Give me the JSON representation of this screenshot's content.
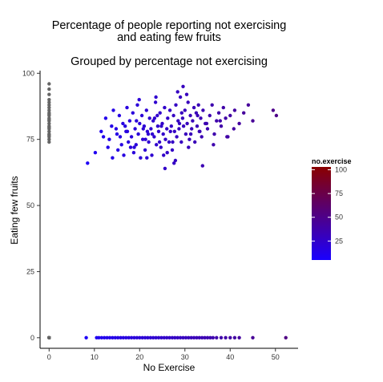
{
  "chart_data": {
    "type": "scatter",
    "title_lines": [
      "Percentage of people reporting not exercising",
      "and eating few fruits"
    ],
    "subtitle": "Grouped by percentage not exercising",
    "xlabel": "No Exercise",
    "ylabel": "Eating few fruits",
    "xlim": [
      -2,
      55
    ],
    "ylim": [
      -4,
      101
    ],
    "x_ticks": [
      0,
      10,
      20,
      30,
      40,
      50
    ],
    "y_ticks": [
      0,
      25,
      50,
      75,
      100
    ],
    "grid": false,
    "legend": {
      "title": "no.exercise",
      "position": "right",
      "range": [
        5,
        103
      ],
      "ticks": [
        25,
        50,
        75,
        100
      ],
      "color_low": "#1a00ff",
      "color_high": "#8a0000"
    },
    "na_color": "#666666",
    "series": [
      {
        "group": "na-x",
        "x": [
          0,
          0,
          0,
          0,
          0,
          0,
          0,
          0,
          0,
          0,
          0,
          0,
          0,
          0,
          0,
          0,
          0,
          0,
          0,
          0,
          0,
          0,
          0,
          0
        ],
        "y": [
          96,
          94,
          92,
          90,
          89,
          88,
          87,
          86,
          85,
          84.5,
          84,
          83,
          82.5,
          82,
          81,
          80,
          79.5,
          79,
          78,
          77,
          76.5,
          76,
          75,
          74
        ]
      },
      {
        "group": "na-y",
        "x": [
          0,
          0,
          0,
          0,
          0,
          0,
          0,
          0,
          0,
          0,
          0,
          0,
          0,
          0,
          0,
          0,
          0,
          0,
          0,
          0,
          0,
          0,
          0,
          0,
          0,
          0,
          0,
          0,
          0,
          0,
          0,
          0,
          0,
          0,
          0,
          0,
          0,
          0,
          0,
          0,
          0,
          0,
          0,
          0,
          0,
          0,
          0,
          0
        ],
        "y": [
          0,
          0,
          0,
          0,
          0,
          0,
          0,
          0,
          0,
          0,
          0,
          0,
          0,
          0,
          0,
          0,
          0,
          0,
          0,
          0,
          0,
          0,
          0,
          0,
          0,
          0,
          0,
          0,
          0,
          0,
          0,
          0,
          0,
          0,
          0,
          0,
          0,
          0,
          0,
          0,
          0,
          0,
          0,
          0,
          0,
          0,
          0,
          0
        ]
      },
      {
        "group": "cluster",
        "x": [
          8.5,
          10.2,
          11.5,
          12,
          12.5,
          13,
          13.3,
          14,
          14.2,
          14.8,
          15,
          15.2,
          15.5,
          16,
          16.3,
          16.5,
          17,
          17.2,
          17.5,
          17.8,
          18,
          18.2,
          18.5,
          18.7,
          19,
          19.2,
          19.5,
          19.7,
          20,
          20.2,
          20.5,
          20.7,
          21,
          21.2,
          21.5,
          21.7,
          22,
          22.2,
          22.5,
          22.7,
          23,
          23.2,
          23.5,
          23.7,
          24,
          24.2,
          24.5,
          24.7,
          25,
          25.2,
          25.5,
          25.7,
          26,
          26.2,
          26.5,
          26.7,
          27,
          27.2,
          27.5,
          27.7,
          28,
          28.2,
          28.5,
          28.7,
          29,
          29.2,
          29.5,
          29.7,
          30,
          30.2,
          30.5,
          30.7,
          31,
          31.2,
          31.5,
          31.7,
          32,
          32.2,
          32.5,
          32.7,
          33,
          33.2,
          33.5,
          33.7,
          34,
          34.5,
          35,
          35.5,
          36,
          36.5,
          37,
          37.5,
          38,
          38.5,
          39,
          39.5,
          40,
          41,
          42,
          43,
          44,
          45,
          49.5,
          50.2,
          13.8,
          15.7,
          16.8,
          17.3,
          18.8,
          19.3,
          20.8,
          21.3,
          22.8,
          23.3,
          24.8,
          25.3,
          26.8,
          27.3,
          28.8,
          29.3,
          30.8,
          31.3,
          32.8,
          33.3,
          34.8,
          36.3,
          37.8,
          39.3,
          40.8,
          23.9,
          26.1,
          28.4,
          19.9,
          21.9,
          24.4,
          27.9,
          30.4,
          33.9,
          29.6,
          27.6,
          25.6,
          23.6,
          21.6
        ],
        "y": [
          66,
          70,
          78,
          76,
          83,
          72,
          75,
          68,
          86,
          79,
          77,
          71,
          84,
          73,
          81,
          69,
          78,
          87,
          74,
          82,
          72,
          76,
          85,
          70,
          79,
          73,
          88,
          77,
          81,
          68,
          84,
          75,
          80,
          71,
          86,
          78,
          74,
          83,
          79,
          69,
          82,
          76,
          89,
          73,
          80,
          78,
          85,
          72,
          81,
          77,
          87,
          75,
          79,
          83,
          74,
          86,
          80,
          71,
          84,
          78,
          88,
          76,
          82,
          79,
          91,
          74,
          83,
          80,
          86,
          77,
          81,
          89,
          75,
          84,
          79,
          82,
          87,
          74,
          85,
          80,
          88,
          78,
          83,
          76,
          86,
          81,
          79,
          84,
          88,
          77,
          82,
          85,
          80,
          87,
          83,
          76,
          84,
          86,
          81,
          85,
          88,
          82,
          86,
          84,
          80,
          76,
          80,
          78,
          72,
          82,
          79,
          75,
          77,
          83,
          80,
          69,
          78,
          74,
          81,
          85,
          72,
          77,
          84,
          78,
          81,
          73,
          82,
          76,
          79,
          84,
          70,
          93,
          90,
          77,
          74,
          67,
          92,
          65,
          95,
          66,
          64,
          91,
          68
        ]
      },
      {
        "group": "zero-row",
        "x": [
          8.2,
          10.5,
          11,
          11.6,
          12.2,
          12.8,
          13.4,
          14,
          14.6,
          15.2,
          15.8,
          16.4,
          17,
          17.6,
          18.2,
          18.8,
          19.4,
          20,
          20.6,
          21.2,
          21.8,
          22.4,
          23,
          23.6,
          24.2,
          24.8,
          25.4,
          26,
          26.6,
          27.2,
          27.8,
          28.4,
          29,
          29.6,
          30.2,
          30.8,
          31.4,
          32,
          32.6,
          33.2,
          33.8,
          34.4,
          35,
          35.6,
          36.2,
          37,
          38,
          39,
          40,
          41,
          42,
          45,
          52.3
        ],
        "y": [
          0,
          0,
          0,
          0,
          0,
          0,
          0,
          0,
          0,
          0,
          0,
          0,
          0,
          0,
          0,
          0,
          0,
          0,
          0,
          0,
          0,
          0,
          0,
          0,
          0,
          0,
          0,
          0,
          0,
          0,
          0,
          0,
          0,
          0,
          0,
          0,
          0,
          0,
          0,
          0,
          0,
          0,
          0,
          0,
          0,
          0,
          0,
          0,
          0,
          0,
          0,
          0,
          0
        ]
      }
    ]
  }
}
